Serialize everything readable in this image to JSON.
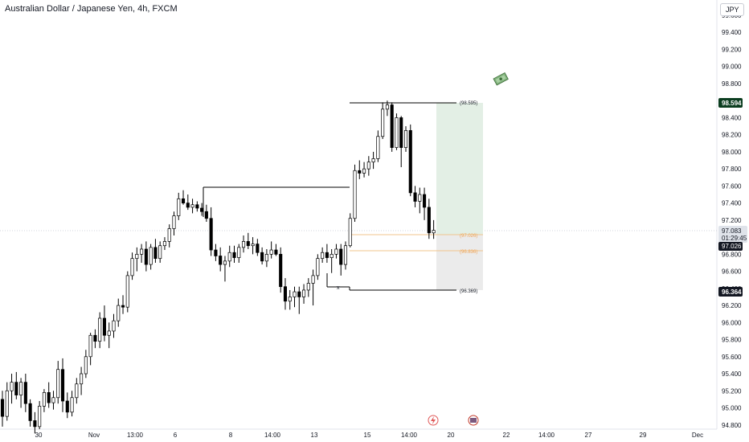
{
  "title": "Australian Dollar / Japanese Yen, 4h, FXCM",
  "currency_button": "JPY",
  "colors": {
    "candle_up_body": "#ffffff",
    "candle_down_body": "#000000",
    "candle_border": "#000000",
    "target_zone": "#e3efe5",
    "stop_zone": "#ebebeb",
    "entry_line": "#f0c58e",
    "price_tag_up": "#0b3d1f",
    "price_tag_down": "#131722",
    "price_tag_current": "#dfe3ea"
  },
  "price_axis": {
    "labels": [
      "99.600",
      "99.400",
      "99.200",
      "99.000",
      "98.800",
      "98.600",
      "98.400",
      "98.200",
      "98.000",
      "97.800",
      "97.600",
      "97.400",
      "97.200",
      "97.000",
      "96.800",
      "96.600",
      "96.400",
      "96.200",
      "96.000",
      "95.800",
      "95.600",
      "95.400",
      "95.200",
      "95.000",
      "94.800"
    ],
    "tags": {
      "target": "98.594",
      "current": "97.083",
      "countdown": "01:29:45",
      "entry": "97.026",
      "stop": "96.364"
    }
  },
  "time_axis": {
    "labels": [
      "30",
      "Nov",
      "13:00",
      "6",
      "8",
      "14:00",
      "13",
      "15",
      "14:00",
      "20",
      "22",
      "14:00",
      "27",
      "29",
      "Dec"
    ]
  },
  "annotations": {
    "target_label": "(98.595)",
    "entry_label": "(97.026)",
    "mid_label": "(96.836)",
    "stop_label": "(96.369)",
    "x_marker": "x"
  },
  "icons": {
    "money": "money-icon",
    "event_lightning": "lightning-event-icon",
    "event_flag": "us-flag-event-icon"
  },
  "chart_data": {
    "type": "candlestick",
    "title": "Australian Dollar / Japanese Yen, 4h, FXCM",
    "ylim": [
      94.76,
      99.76
    ],
    "candles": [
      [
        95.1,
        95.2,
        94.78,
        94.9
      ],
      [
        94.9,
        95.3,
        94.85,
        95.2
      ],
      [
        95.2,
        95.4,
        95.05,
        95.3
      ],
      [
        95.3,
        95.42,
        95.1,
        95.15
      ],
      [
        95.15,
        95.35,
        95.0,
        95.3
      ],
      [
        95.3,
        95.4,
        94.95,
        95.05
      ],
      [
        95.05,
        95.1,
        94.78,
        94.85
      ],
      [
        94.85,
        94.95,
        94.7,
        94.78
      ],
      [
        94.78,
        95.08,
        94.75,
        95.02
      ],
      [
        95.02,
        95.22,
        94.95,
        95.18
      ],
      [
        95.18,
        95.3,
        95.0,
        95.06
      ],
      [
        95.06,
        95.2,
        94.98,
        95.12
      ],
      [
        95.12,
        95.55,
        95.05,
        95.45
      ],
      [
        95.45,
        95.58,
        94.95,
        95.08
      ],
      [
        95.08,
        95.18,
        94.88,
        94.95
      ],
      [
        94.95,
        95.2,
        94.9,
        95.12
      ],
      [
        95.12,
        95.35,
        95.05,
        95.28
      ],
      [
        95.28,
        95.48,
        95.15,
        95.4
      ],
      [
        95.4,
        95.68,
        95.35,
        95.6
      ],
      [
        95.6,
        95.88,
        95.5,
        95.85
      ],
      [
        95.85,
        95.92,
        95.7,
        95.78
      ],
      [
        95.78,
        96.12,
        95.7,
        96.05
      ],
      [
        96.05,
        96.2,
        95.78,
        95.85
      ],
      [
        95.85,
        96.0,
        95.7,
        95.9
      ],
      [
        95.9,
        96.1,
        95.82,
        96.02
      ],
      [
        96.02,
        96.28,
        95.95,
        96.2
      ],
      [
        96.2,
        96.32,
        96.1,
        96.18
      ],
      [
        96.18,
        96.6,
        96.12,
        96.55
      ],
      [
        96.55,
        96.82,
        96.5,
        96.75
      ],
      [
        96.75,
        96.88,
        96.6,
        96.8
      ],
      [
        96.8,
        96.92,
        96.7,
        96.86
      ],
      [
        96.86,
        96.95,
        96.6,
        96.68
      ],
      [
        96.68,
        96.92,
        96.62,
        96.88
      ],
      [
        96.88,
        96.98,
        96.7,
        96.75
      ],
      [
        96.75,
        96.95,
        96.7,
        96.9
      ],
      [
        96.9,
        97.0,
        96.85,
        96.95
      ],
      [
        96.95,
        97.15,
        96.88,
        97.1
      ],
      [
        97.1,
        97.3,
        97.02,
        97.25
      ],
      [
        97.25,
        97.52,
        97.2,
        97.45
      ],
      [
        97.45,
        97.55,
        97.38,
        97.4
      ],
      [
        97.4,
        97.5,
        97.32,
        97.35
      ],
      [
        97.35,
        97.45,
        97.28,
        97.38
      ],
      [
        97.38,
        97.42,
        97.3,
        97.34
      ],
      [
        97.34,
        97.4,
        97.25,
        97.3
      ],
      [
        97.3,
        97.38,
        97.18,
        97.22
      ],
      [
        97.22,
        97.35,
        96.78,
        96.85
      ],
      [
        96.85,
        96.92,
        96.72,
        96.78
      ],
      [
        96.78,
        96.88,
        96.6,
        96.68
      ],
      [
        96.68,
        96.78,
        96.48,
        96.72
      ],
      [
        96.72,
        96.9,
        96.65,
        96.82
      ],
      [
        96.82,
        96.9,
        96.7,
        96.76
      ],
      [
        96.76,
        96.92,
        96.7,
        96.88
      ],
      [
        96.88,
        97.02,
        96.82,
        96.95
      ],
      [
        96.95,
        97.05,
        96.86,
        96.9
      ],
      [
        96.9,
        97.0,
        96.8,
        96.92
      ],
      [
        96.92,
        96.98,
        96.78,
        96.82
      ],
      [
        96.82,
        96.88,
        96.68,
        96.72
      ],
      [
        96.72,
        96.86,
        96.65,
        96.8
      ],
      [
        96.8,
        96.95,
        96.75,
        96.85
      ],
      [
        96.85,
        96.92,
        96.78,
        96.8
      ],
      [
        96.8,
        96.88,
        96.35,
        96.42
      ],
      [
        96.42,
        96.52,
        96.15,
        96.25
      ],
      [
        96.25,
        96.38,
        96.15,
        96.3
      ],
      [
        96.3,
        96.42,
        96.18,
        96.36
      ],
      [
        96.36,
        96.42,
        96.1,
        96.3
      ],
      [
        96.3,
        96.45,
        96.22,
        96.38
      ],
      [
        96.38,
        96.52,
        96.3,
        96.46
      ],
      [
        96.46,
        96.62,
        96.2,
        96.55
      ],
      [
        96.55,
        96.8,
        96.5,
        96.75
      ],
      [
        96.75,
        96.88,
        96.7,
        96.82
      ],
      [
        96.82,
        96.92,
        96.7,
        96.76
      ],
      [
        96.76,
        96.86,
        96.58,
        96.8
      ],
      [
        96.8,
        96.92,
        96.75,
        96.86
      ],
      [
        96.86,
        96.92,
        96.55,
        96.68
      ],
      [
        96.68,
        96.95,
        96.62,
        96.9
      ],
      [
        96.9,
        97.28,
        96.88,
        97.22
      ],
      [
        97.22,
        97.85,
        97.18,
        97.78
      ],
      [
        97.78,
        97.9,
        97.68,
        97.75
      ],
      [
        97.75,
        97.88,
        97.7,
        97.8
      ],
      [
        97.8,
        97.95,
        97.72,
        97.88
      ],
      [
        97.88,
        98.0,
        97.8,
        97.92
      ],
      [
        97.92,
        98.25,
        97.88,
        98.18
      ],
      [
        98.18,
        98.58,
        98.15,
        98.5
      ],
      [
        98.5,
        98.6,
        98.42,
        98.55
      ],
      [
        98.55,
        98.58,
        98.0,
        98.05
      ],
      [
        98.05,
        98.45,
        98.02,
        98.4
      ],
      [
        98.4,
        98.42,
        97.82,
        98.05
      ],
      [
        98.05,
        98.3,
        98.0,
        98.25
      ],
      [
        98.25,
        98.32,
        97.48,
        97.52
      ],
      [
        97.52,
        97.6,
        97.35,
        97.42
      ],
      [
        97.42,
        97.58,
        97.28,
        97.5
      ],
      [
        97.5,
        97.58,
        97.2,
        97.35
      ],
      [
        97.35,
        97.45,
        96.98,
        97.05
      ],
      [
        97.05,
        97.2,
        96.98,
        97.08
      ]
    ]
  }
}
